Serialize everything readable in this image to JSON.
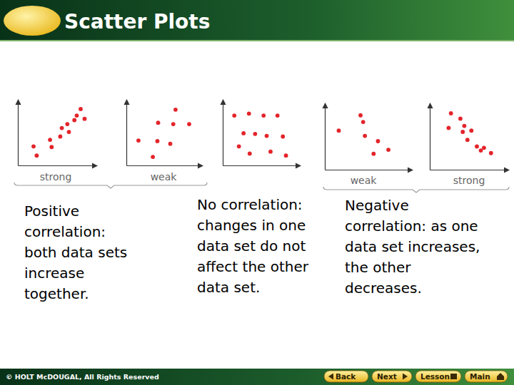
{
  "header": {
    "title": "Scatter Plots"
  },
  "chart_data": [
    {
      "type": "scatter",
      "xlabel": "strong",
      "color": "#e3242b",
      "xlim": [
        0,
        10
      ],
      "ylim": [
        0,
        10
      ],
      "tick_labels": false,
      "x": [
        2.0,
        2.4,
        4.1,
        4.3,
        5.4,
        5.6,
        6.3,
        6.5,
        7.2,
        7.5,
        8.0,
        8.5
      ],
      "values": [
        2.9,
        1.5,
        3.9,
        2.8,
        4.4,
        5.7,
        6.3,
        5.1,
        6.9,
        7.6,
        8.6,
        7.1
      ]
    },
    {
      "type": "scatter",
      "xlabel": "weak",
      "color": "#e3242b",
      "xlim": [
        0,
        10
      ],
      "ylim": [
        0,
        10
      ],
      "tick_labels": false,
      "x": [
        1.6,
        3.5,
        4.1,
        4.2,
        5.8,
        6.2,
        6.5,
        8.3
      ],
      "values": [
        3.8,
        1.3,
        3.7,
        6.5,
        3.3,
        6.3,
        8.5,
        6.3
      ]
    },
    {
      "type": "scatter",
      "color": "#e3242b",
      "xlim": [
        0,
        10
      ],
      "ylim": [
        0,
        10
      ],
      "tick_labels": false,
      "x": [
        1.5,
        3.4,
        5.3,
        7.1,
        2.7,
        4.2,
        5.7,
        7.8,
        2.1,
        3.5,
        6.2,
        8.2
      ],
      "values": [
        7.6,
        7.9,
        7.6,
        7.6,
        4.9,
        4.8,
        4.5,
        4.4,
        2.9,
        1.8,
        2.1,
        1.5
      ]
    },
    {
      "type": "scatter",
      "xlabel": "weak",
      "color": "#e3242b",
      "xlim": [
        0,
        10
      ],
      "ylim": [
        0,
        10
      ],
      "tick_labels": false,
      "x": [
        1.6,
        4.1,
        4.4,
        4.6,
        6.1,
        5.6,
        7.3
      ],
      "values": [
        5.9,
        8.2,
        7.2,
        5.1,
        4.3,
        2.4,
        3.0
      ]
    },
    {
      "type": "scatter",
      "xlabel": "strong",
      "color": "#e3242b",
      "xlim": [
        0,
        10
      ],
      "ylim": [
        0,
        10
      ],
      "tick_labels": false,
      "x": [
        2.7,
        3.9,
        4.4,
        2.4,
        4.2,
        5.3,
        4.8,
        6.0,
        6.5,
        6.9,
        7.8
      ],
      "values": [
        8.5,
        7.7,
        6.6,
        6.3,
        5.7,
        5.9,
        4.5,
        3.5,
        2.9,
        3.3,
        2.5
      ]
    }
  ],
  "captions": [
    {
      "lines": [
        "Positive",
        "correlation:",
        "both data sets",
        "increase",
        "together."
      ]
    },
    {
      "lines": [
        "No correlation:",
        "changes in one",
        "data set do not",
        "affect the other",
        "data set."
      ]
    },
    {
      "lines": [
        "Negative",
        "correlation: as one",
        "data set increases,",
        "the other",
        "decreases."
      ]
    }
  ],
  "footer": {
    "copyright": "© HOLT McDOUGAL, All Rights Reserved",
    "buttons": [
      "Back",
      "Next",
      "Lesson",
      "Main"
    ]
  }
}
